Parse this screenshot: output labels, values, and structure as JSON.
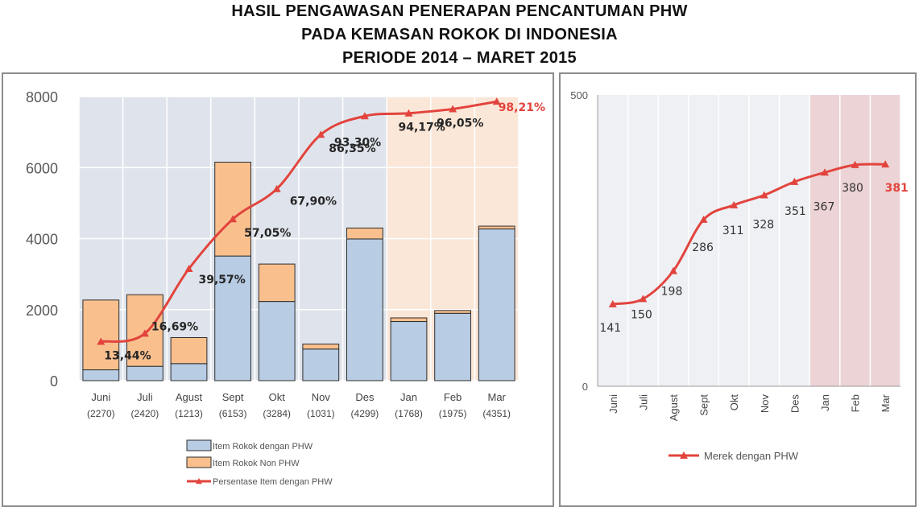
{
  "title": {
    "line1": "HASIL PENGAWASAN PENERAPAN PENCANTUMAN PHW",
    "line2": "PADA KEMASAN ROKOK DI INDONESIA",
    "line3": "PERIODE 2014 – MARET 2015"
  },
  "chart_data": [
    {
      "type": "bar",
      "stacked": true,
      "categories": [
        "Juni",
        "Juli",
        "Agust",
        "Sept",
        "Okt",
        "Nov",
        "Des",
        "Jan",
        "Feb",
        "Mar"
      ],
      "category_sublabels": [
        "(2270)",
        "(2420)",
        "(1213)",
        "(6153)",
        "(3284)",
        "(1031)",
        "(4299)",
        "(1768)",
        "(1975)",
        "(4351)"
      ],
      "ylim": [
        0,
        8000
      ],
      "yticks": [
        "0",
        "2000",
        "4000",
        "6000",
        "8000"
      ],
      "series": [
        {
          "name": "Item Rokok dengan PHW",
          "type": "bar",
          "color": "#b8cce4",
          "values": [
            305,
            404,
            480,
            3510,
            2230,
            890,
            3990,
            1665,
            1897,
            4273
          ]
        },
        {
          "name": "Item Rokok Non PHW",
          "type": "bar",
          "color": "#f9c08e",
          "values": [
            1965,
            2016,
            733,
            2643,
            1054,
            141,
            309,
            103,
            78,
            78
          ]
        },
        {
          "name": "Persentase Item dengan PHW",
          "type": "line",
          "color": "#e2443d",
          "values": [
            1100,
            1330,
            3150,
            4550,
            5400,
            6930,
            7450,
            7530,
            7650,
            7860
          ],
          "labels": [
            "13,44%",
            "16,69%",
            "39,57%",
            "57,05%",
            "67,90%",
            "86,35%",
            "93,30%",
            "94,17%",
            "96,05%",
            "98,21%"
          ]
        }
      ],
      "legend_position": "bottom",
      "grid": true
    },
    {
      "type": "line",
      "categories": [
        "Juni",
        "Juli",
        "Agust",
        "Sept",
        "Okt",
        "Nov",
        "Des",
        "Jan",
        "Feb",
        "Mar"
      ],
      "ylim": [
        0,
        500
      ],
      "yticks": [
        "0",
        "500"
      ],
      "series": [
        {
          "name": "Merek dengan PHW",
          "color": "#e2443d",
          "values": [
            141,
            150,
            198,
            286,
            311,
            328,
            351,
            367,
            380,
            381
          ],
          "labels": [
            "141",
            "150",
            "198",
            "286",
            "311",
            "328",
            "351",
            "367",
            "380",
            "381"
          ]
        }
      ],
      "legend_position": "bottom",
      "grid": true
    }
  ],
  "colors": {
    "bar_phw": "#b8cce4",
    "bar_phw_edge": "#2d2d2d",
    "bar_nonphw": "#f9c08e",
    "line": "#e2443d",
    "highlight_left": "#fbe7d8",
    "highlight_right": "#ecd3d6",
    "grid_bg": "#dfe4ec"
  }
}
